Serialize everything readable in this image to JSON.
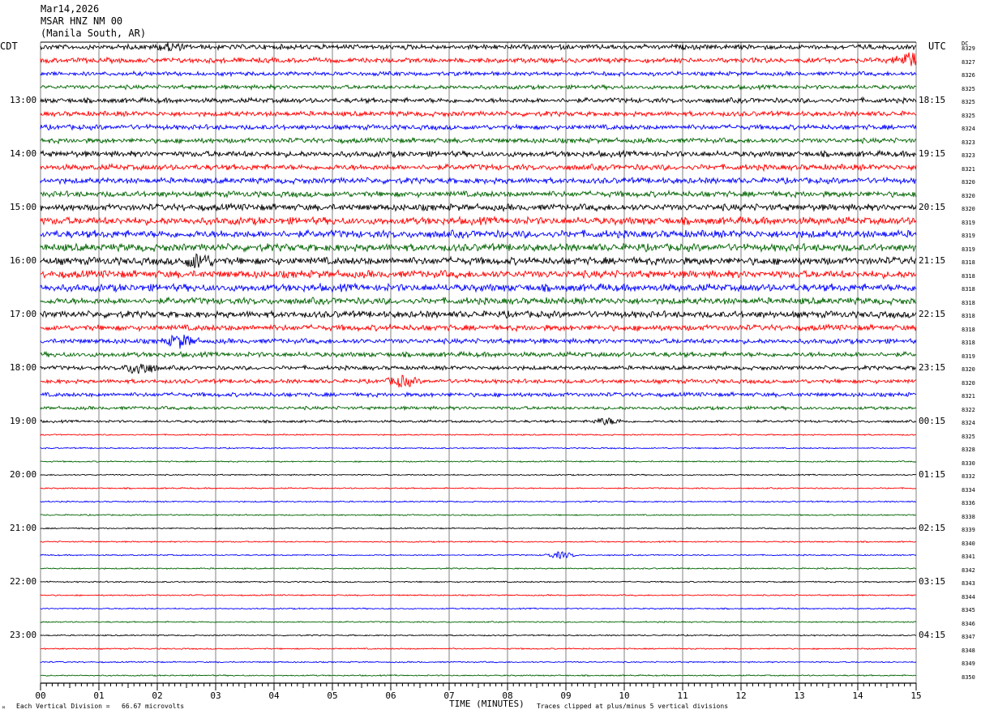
{
  "header": {
    "date": "Mar14,2026",
    "station": "MSAR HNZ NM 00",
    "location": "(Manila South, AR)"
  },
  "left_axis_title": "CDT",
  "right_axis_title": "UTC",
  "dc_title": "DC",
  "footer": {
    "left_mark": "ᴹ",
    "scale_text": "Each Vertical Division =   66.67 microvolts",
    "clip_text": "Traces clipped at plus/minus 5 vertical divisions"
  },
  "colors": {
    "trace_cycle": [
      "#000000",
      "#ff0000",
      "#0000ff",
      "#006400"
    ],
    "grid": "#808080",
    "axis": "#000000"
  },
  "chart_data": {
    "type": "helicorder",
    "xlabel": "TIME (MINUTES)",
    "x_ticks": [
      "00",
      "01",
      "02",
      "03",
      "04",
      "05",
      "06",
      "07",
      "08",
      "09",
      "10",
      "11",
      "12",
      "13",
      "14",
      "15"
    ],
    "xlim": [
      0,
      15
    ],
    "left_time_labels": [
      "13:00",
      "14:00",
      "15:00",
      "16:00",
      "17:00",
      "18:00",
      "19:00",
      "20:00",
      "21:00",
      "22:00",
      "23:00"
    ],
    "right_time_labels": [
      "18:15",
      "19:15",
      "20:15",
      "21:15",
      "22:15",
      "23:15",
      "00:15",
      "01:15",
      "02:15",
      "03:15",
      "04:15"
    ],
    "traces_per_hour": 4,
    "first_labeled_row": 4,
    "dc_values": [
      "8329",
      "8327",
      "8326",
      "8325",
      "8325",
      "8325",
      "8324",
      "8323",
      "8323",
      "8321",
      "8320",
      "8320",
      "8320",
      "8319",
      "8319",
      "8319",
      "8318",
      "8318",
      "8318",
      "8318",
      "8318",
      "8318",
      "8318",
      "8319",
      "8320",
      "8320",
      "8321",
      "8322",
      "8324",
      "8325",
      "8328",
      "8330",
      "8332",
      "8334",
      "8336",
      "8338",
      "8339",
      "8340",
      "8341",
      "8342",
      "8343",
      "8344",
      "8345",
      "8346",
      "8347",
      "8348",
      "8349",
      "8350"
    ],
    "amplitude_levels": [
      3,
      3,
      2.5,
      2.5,
      3,
      3,
      3,
      3,
      3.5,
      3.5,
      3.5,
      3.5,
      4,
      4.5,
      4.5,
      4.5,
      4.5,
      4.5,
      4.5,
      4,
      4,
      3.5,
      3,
      3,
      2.5,
      2.5,
      2.5,
      2,
      1.5,
      0.8,
      0.8,
      0.8,
      0.8,
      0.8,
      0.8,
      0.8,
      0.8,
      0.8,
      0.8,
      0.8,
      0.8,
      0.8,
      0.8,
      0.8,
      0.8,
      0.8,
      0.8,
      0.8
    ],
    "events": [
      {
        "row": 0,
        "minute": 2.2,
        "amp": 4
      },
      {
        "row": 1,
        "minute": 14.9,
        "amp": 9
      },
      {
        "row": 16,
        "minute": 2.7,
        "amp": 8
      },
      {
        "row": 22,
        "minute": 2.4,
        "amp": 7
      },
      {
        "row": 24,
        "minute": 1.7,
        "amp": 8
      },
      {
        "row": 25,
        "minute": 6.2,
        "amp": 6
      },
      {
        "row": 28,
        "minute": 9.7,
        "amp": 4
      },
      {
        "row": 38,
        "minute": 8.9,
        "amp": 4
      }
    ],
    "vertical_division_microvolts": 66.67,
    "clip_divisions": 5
  }
}
